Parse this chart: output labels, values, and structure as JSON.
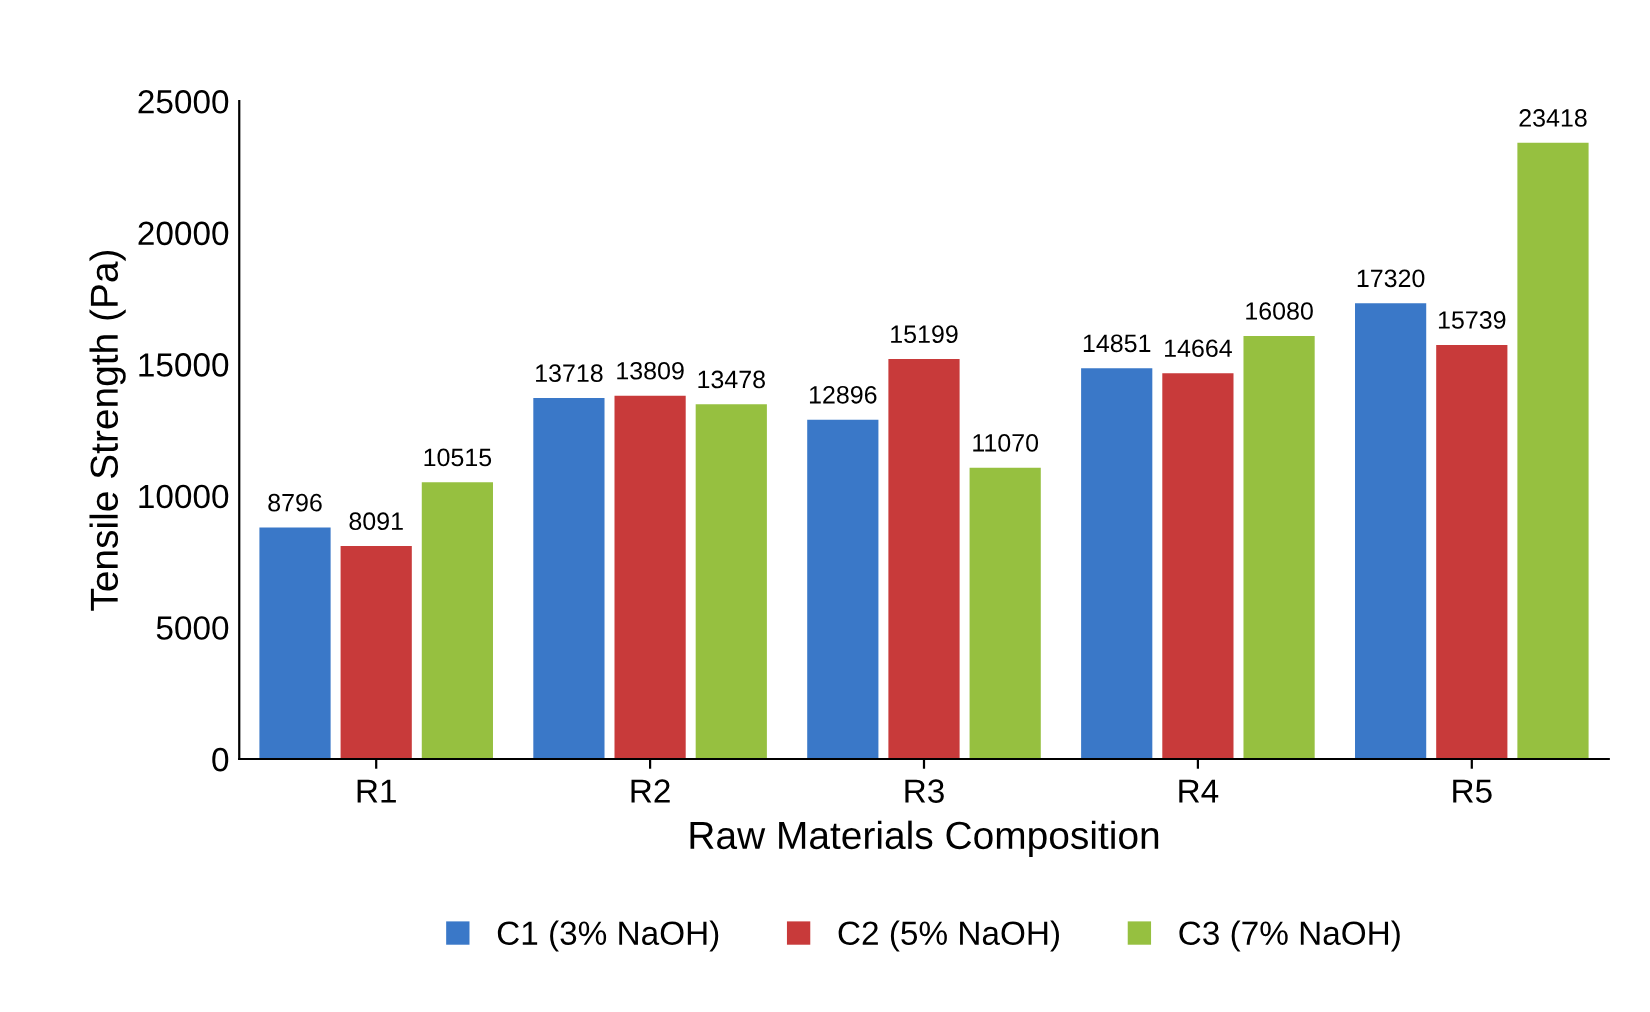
{
  "chart_data": {
    "type": "bar",
    "xlabel": "Raw Materials Composition",
    "ylabel": "Tensile Strength (Pa)",
    "categories": [
      "R1",
      "R2",
      "R3",
      "R4",
      "R5"
    ],
    "series": [
      {
        "name": "C1 (3% NaOH)",
        "color": "#3a78c8",
        "values": [
          8796,
          13718,
          12896,
          14851,
          17320
        ]
      },
      {
        "name": "C2 (5% NaOH)",
        "color": "#c83a3a",
        "values": [
          8091,
          13809,
          15199,
          14664,
          15739
        ]
      },
      {
        "name": "C3 (7% NaOH)",
        "color": "#96c040",
        "values": [
          10515,
          13478,
          11070,
          16080,
          23418
        ]
      }
    ],
    "ylim": [
      0,
      25000
    ],
    "yticks": [
      0,
      5000,
      10000,
      15000,
      20000,
      25000
    ],
    "data_labels": true,
    "legend": "bottom",
    "grid": false
  }
}
